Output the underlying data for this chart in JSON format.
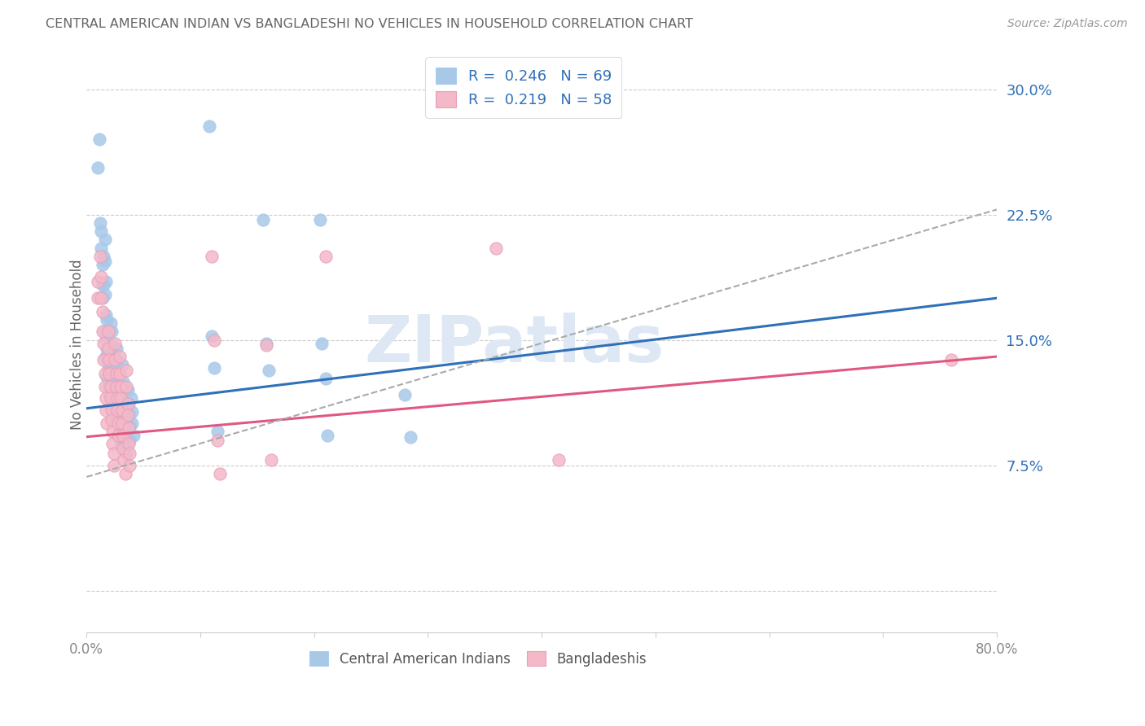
{
  "title": "CENTRAL AMERICAN INDIAN VS BANGLADESHI NO VEHICLES IN HOUSEHOLD CORRELATION CHART",
  "source": "Source: ZipAtlas.com",
  "ylabel": "No Vehicles in Household",
  "watermark": "ZIPatlas",
  "blue_color": "#a8c8e8",
  "pink_color": "#f4b8c8",
  "blue_line_color": "#3070b8",
  "pink_line_color": "#e05880",
  "dashed_line_color": "#aaaaaa",
  "legend_text_color": "#3070b8",
  "title_color": "#666666",
  "blue_scatter": [
    [
      0.011,
      0.27
    ],
    [
      0.01,
      0.253
    ],
    [
      0.012,
      0.22
    ],
    [
      0.013,
      0.215
    ],
    [
      0.013,
      0.205
    ],
    [
      0.014,
      0.195
    ],
    [
      0.014,
      0.183
    ],
    [
      0.015,
      0.2
    ],
    [
      0.016,
      0.197
    ],
    [
      0.015,
      0.183
    ],
    [
      0.014,
      0.175
    ],
    [
      0.016,
      0.21
    ],
    [
      0.017,
      0.185
    ],
    [
      0.016,
      0.177
    ],
    [
      0.017,
      0.165
    ],
    [
      0.018,
      0.162
    ],
    [
      0.016,
      0.155
    ],
    [
      0.017,
      0.15
    ],
    [
      0.018,
      0.145
    ],
    [
      0.017,
      0.14
    ],
    [
      0.018,
      0.138
    ],
    [
      0.019,
      0.133
    ],
    [
      0.018,
      0.128
    ],
    [
      0.019,
      0.122
    ],
    [
      0.02,
      0.118
    ],
    [
      0.021,
      0.16
    ],
    [
      0.022,
      0.155
    ],
    [
      0.021,
      0.148
    ],
    [
      0.022,
      0.142
    ],
    [
      0.023,
      0.138
    ],
    [
      0.022,
      0.132
    ],
    [
      0.023,
      0.125
    ],
    [
      0.024,
      0.12
    ],
    [
      0.023,
      0.115
    ],
    [
      0.024,
      0.11
    ],
    [
      0.025,
      0.107
    ],
    [
      0.025,
      0.102
    ],
    [
      0.026,
      0.145
    ],
    [
      0.027,
      0.138
    ],
    [
      0.027,
      0.13
    ],
    [
      0.028,
      0.124
    ],
    [
      0.027,
      0.118
    ],
    [
      0.028,
      0.112
    ],
    [
      0.028,
      0.107
    ],
    [
      0.029,
      0.102
    ],
    [
      0.029,
      0.097
    ],
    [
      0.03,
      0.093
    ],
    [
      0.03,
      0.088
    ],
    [
      0.031,
      0.135
    ],
    [
      0.032,
      0.125
    ],
    [
      0.032,
      0.115
    ],
    [
      0.033,
      0.108
    ],
    [
      0.033,
      0.1
    ],
    [
      0.034,
      0.095
    ],
    [
      0.034,
      0.088
    ],
    [
      0.035,
      0.082
    ],
    [
      0.036,
      0.12
    ],
    [
      0.037,
      0.112
    ],
    [
      0.037,
      0.105
    ],
    [
      0.038,
      0.098
    ],
    [
      0.038,
      0.09
    ],
    [
      0.039,
      0.115
    ],
    [
      0.04,
      0.107
    ],
    [
      0.04,
      0.1
    ],
    [
      0.041,
      0.093
    ],
    [
      0.108,
      0.278
    ],
    [
      0.11,
      0.152
    ],
    [
      0.112,
      0.133
    ],
    [
      0.115,
      0.095
    ],
    [
      0.155,
      0.222
    ],
    [
      0.158,
      0.148
    ],
    [
      0.16,
      0.132
    ],
    [
      0.205,
      0.222
    ],
    [
      0.207,
      0.148
    ],
    [
      0.21,
      0.127
    ],
    [
      0.212,
      0.093
    ],
    [
      0.28,
      0.117
    ],
    [
      0.285,
      0.092
    ]
  ],
  "pink_scatter": [
    [
      0.01,
      0.185
    ],
    [
      0.01,
      0.175
    ],
    [
      0.012,
      0.2
    ],
    [
      0.013,
      0.188
    ],
    [
      0.013,
      0.175
    ],
    [
      0.014,
      0.167
    ],
    [
      0.014,
      0.155
    ],
    [
      0.015,
      0.148
    ],
    [
      0.015,
      0.138
    ],
    [
      0.016,
      0.13
    ],
    [
      0.016,
      0.122
    ],
    [
      0.017,
      0.115
    ],
    [
      0.017,
      0.108
    ],
    [
      0.018,
      0.1
    ],
    [
      0.019,
      0.155
    ],
    [
      0.019,
      0.145
    ],
    [
      0.02,
      0.138
    ],
    [
      0.02,
      0.13
    ],
    [
      0.021,
      0.122
    ],
    [
      0.021,
      0.115
    ],
    [
      0.022,
      0.108
    ],
    [
      0.022,
      0.102
    ],
    [
      0.023,
      0.095
    ],
    [
      0.023,
      0.088
    ],
    [
      0.024,
      0.082
    ],
    [
      0.024,
      0.075
    ],
    [
      0.025,
      0.148
    ],
    [
      0.025,
      0.138
    ],
    [
      0.026,
      0.13
    ],
    [
      0.026,
      0.122
    ],
    [
      0.027,
      0.115
    ],
    [
      0.027,
      0.108
    ],
    [
      0.028,
      0.1
    ],
    [
      0.028,
      0.093
    ],
    [
      0.029,
      0.14
    ],
    [
      0.029,
      0.13
    ],
    [
      0.03,
      0.122
    ],
    [
      0.03,
      0.115
    ],
    [
      0.031,
      0.108
    ],
    [
      0.031,
      0.1
    ],
    [
      0.032,
      0.093
    ],
    [
      0.032,
      0.085
    ],
    [
      0.033,
      0.078
    ],
    [
      0.034,
      0.07
    ],
    [
      0.035,
      0.132
    ],
    [
      0.035,
      0.122
    ],
    [
      0.036,
      0.112
    ],
    [
      0.036,
      0.105
    ],
    [
      0.037,
      0.097
    ],
    [
      0.037,
      0.088
    ],
    [
      0.038,
      0.082
    ],
    [
      0.038,
      0.075
    ],
    [
      0.11,
      0.2
    ],
    [
      0.112,
      0.15
    ],
    [
      0.115,
      0.09
    ],
    [
      0.117,
      0.07
    ],
    [
      0.158,
      0.147
    ],
    [
      0.162,
      0.078
    ],
    [
      0.21,
      0.2
    ],
    [
      0.36,
      0.205
    ],
    [
      0.415,
      0.078
    ],
    [
      0.76,
      0.138
    ]
  ],
  "blue_line": [
    [
      0.0,
      0.109
    ],
    [
      0.8,
      0.175
    ]
  ],
  "pink_line": [
    [
      0.0,
      0.092
    ],
    [
      0.8,
      0.14
    ]
  ],
  "dashed_line": [
    [
      0.0,
      0.068
    ],
    [
      0.8,
      0.228
    ]
  ],
  "xmin": 0.0,
  "xmax": 0.8,
  "ymin": -0.025,
  "ymax": 0.32,
  "yticks": [
    0.0,
    0.075,
    0.15,
    0.225,
    0.3
  ],
  "ytick_labels": [
    "",
    "7.5%",
    "15.0%",
    "22.5%",
    "30.0%"
  ]
}
